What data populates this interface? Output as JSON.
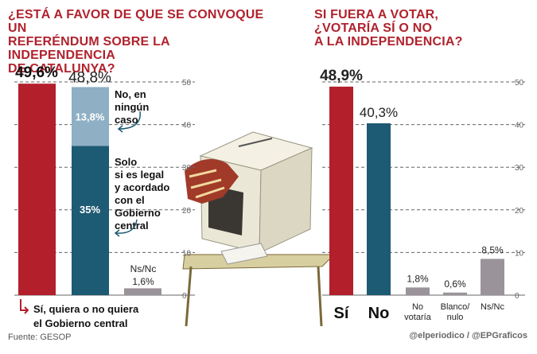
{
  "left_title": "¿ESTÁ A FAVOR DE QUE SE CONVOQUE UN\nREFERÉNDUM SOBRE LA INDEPENDENCIA\nDE CATALUNYA?",
  "right_title": "SI FUERA A VOTAR,\n¿VOTARÍA SÍ O NO\nA LA INDEPENDENCIA?",
  "source": "Fuente: GESOP",
  "credit": "@elperiodico / @EPGraficos",
  "colors": {
    "red": "#b3202c",
    "teal": "#1d5a73",
    "light_blue": "#8eafc4",
    "grey": "#9a9399",
    "axis": "#777777"
  },
  "chart_data": [
    {
      "type": "bar",
      "ylim": [
        0,
        50
      ],
      "yticks": [
        "0",
        "10",
        "20",
        "30",
        "40",
        "50"
      ],
      "bars": [
        {
          "value": 49.6,
          "label": "49,6%",
          "color": "#b3202c",
          "annotation": "Sí, quiera o no quiera\nel Gobierno central"
        },
        {
          "value": 48.8,
          "label": "48,8%",
          "segments": [
            {
              "value": 35,
              "label": "35%",
              "color": "#1d5a73",
              "annotation": "Solo\nsi es legal\ny acordado\ncon el\nGobierno\ncentral"
            },
            {
              "value": 13.8,
              "label": "13,8%",
              "color": "#8eafc4",
              "annotation": "No, en\nningún\ncaso"
            }
          ]
        },
        {
          "value": 1.6,
          "label": "1,6%",
          "category": "Ns/Nc",
          "color": "#9a9399"
        }
      ]
    },
    {
      "type": "bar",
      "ylim": [
        0,
        50
      ],
      "yticks": [
        "0",
        "10",
        "20",
        "30",
        "40",
        "50"
      ],
      "categories": [
        "Sí",
        "No",
        "No\nvotaría",
        "Blanco/\nnulo",
        "Ns/Nc"
      ],
      "values": [
        48.9,
        40.3,
        1.8,
        0.6,
        8.5
      ],
      "value_labels": [
        "48,9%",
        "40,3%",
        "1,8%",
        "0,6%",
        "8,5%"
      ],
      "colors": [
        "#b3202c",
        "#1d5a73",
        "#9a9399",
        "#9a9399",
        "#9a9399"
      ]
    }
  ]
}
